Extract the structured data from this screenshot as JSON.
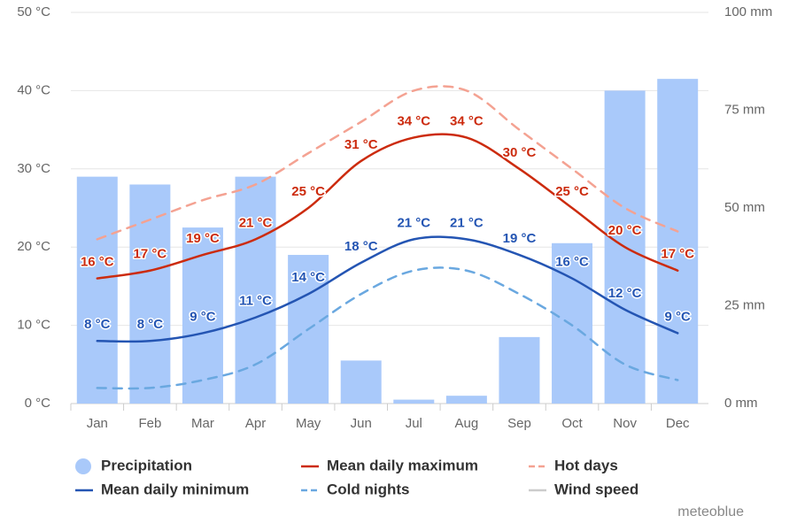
{
  "chart_data": {
    "type": "climate",
    "categories": [
      "Jan",
      "Feb",
      "Mar",
      "Apr",
      "May",
      "Jun",
      "Jul",
      "Aug",
      "Sep",
      "Oct",
      "Nov",
      "Dec"
    ],
    "ylim": [
      0,
      50
    ],
    "yticks": [
      {
        "value": 0,
        "label": "0 °C"
      },
      {
        "value": 10,
        "label": "10 °C"
      },
      {
        "value": 20,
        "label": "20 °C"
      },
      {
        "value": 30,
        "label": "30 °C"
      },
      {
        "value": 40,
        "label": "40 °C"
      },
      {
        "value": 50,
        "label": "50 °C"
      }
    ],
    "y2lim": [
      0,
      100
    ],
    "y2ticks": [
      {
        "value": 0,
        "label": "0 mm"
      },
      {
        "value": 25,
        "label": "25 mm"
      },
      {
        "value": 50,
        "label": "50 mm"
      },
      {
        "value": 75,
        "label": "75 mm"
      },
      {
        "value": 100,
        "label": "100 mm"
      }
    ],
    "grid": true,
    "series": [
      {
        "name": "Precipitation",
        "type": "bar",
        "axis": "y2",
        "color": "#a9c9fa",
        "values": [
          58,
          56,
          45,
          58,
          38,
          11,
          1,
          2,
          17,
          41,
          80,
          83
        ]
      },
      {
        "name": "Mean daily maximum",
        "type": "line",
        "color": "#cc2b0e",
        "values": [
          16,
          17,
          19,
          21,
          25,
          31,
          34,
          34,
          30,
          25,
          20,
          17
        ],
        "value_labels": [
          "16 °C",
          "17 °C",
          "19 °C",
          "21 °C",
          "25 °C",
          "31 °C",
          "34 °C",
          "34 °C",
          "30 °C",
          "25 °C",
          "20 °C",
          "17 °C"
        ]
      },
      {
        "name": "Hot days",
        "type": "dashed",
        "color": "#f4a292",
        "values": [
          21,
          23.5,
          26,
          28,
          32,
          36,
          40,
          40,
          35,
          30,
          25,
          22
        ]
      },
      {
        "name": "Mean daily minimum",
        "type": "line",
        "color": "#2455b3",
        "values": [
          8,
          8,
          9,
          11,
          14,
          18,
          21,
          21,
          19,
          16,
          12,
          9
        ],
        "value_labels": [
          "8 °C",
          "8 °C",
          "9 °C",
          "11 °C",
          "14 °C",
          "18 °C",
          "21 °C",
          "21 °C",
          "19 °C",
          "16 °C",
          "12 °C",
          "9 °C"
        ]
      },
      {
        "name": "Cold nights",
        "type": "dashed",
        "color": "#6aa8e0",
        "values": [
          2,
          2,
          3,
          5,
          9.5,
          14,
          17,
          17,
          14,
          10,
          5,
          3
        ]
      },
      {
        "name": "Wind speed",
        "type": "line",
        "color": "#cccccc",
        "visible": false
      }
    ],
    "credit": "meteoblue"
  }
}
